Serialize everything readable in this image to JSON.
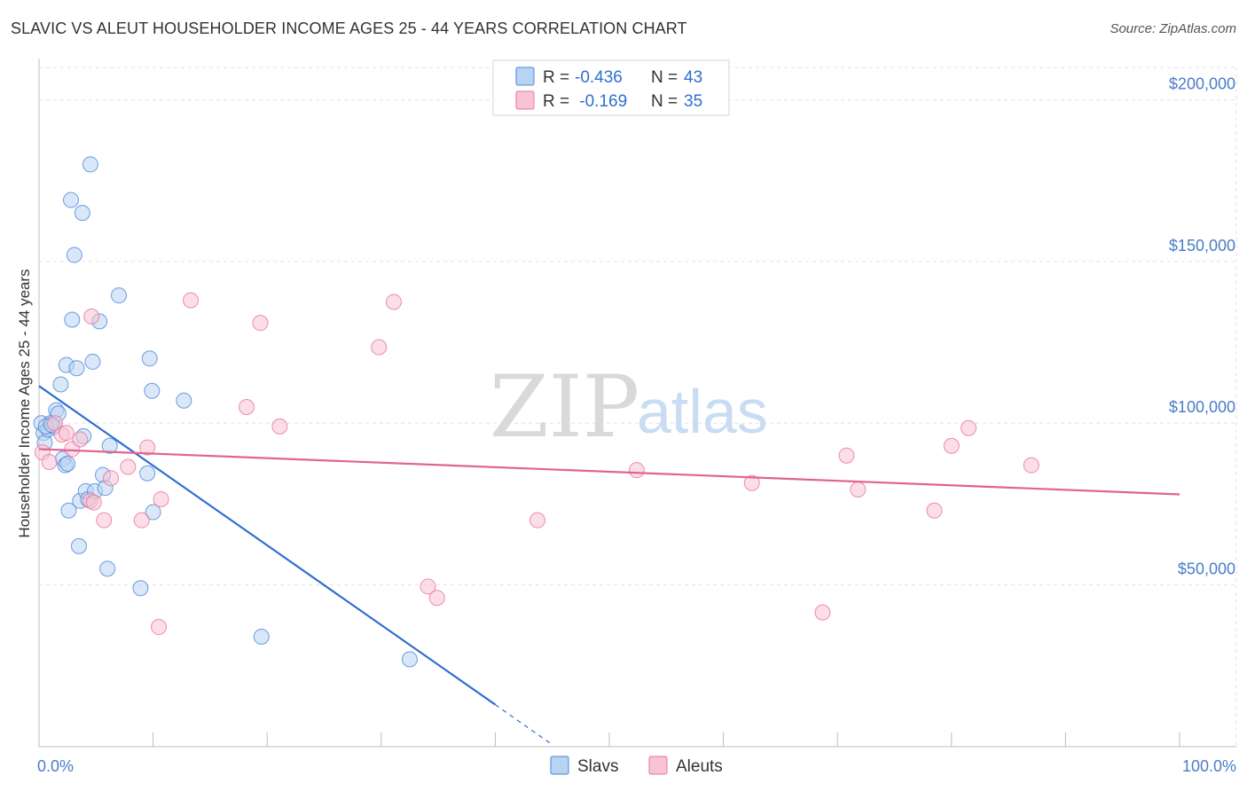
{
  "header": {
    "title": "SLAVIC VS ALEUT HOUSEHOLDER INCOME AGES 25 - 44 YEARS CORRELATION CHART",
    "source": "Source: ZipAtlas.com"
  },
  "watermark": {
    "zip": "ZIP",
    "atlas": "atlas"
  },
  "legend": {
    "rows": [
      {
        "r_label": "R = ",
        "r_value": "-0.436",
        "n_label": "N = ",
        "n_value": "43"
      },
      {
        "r_label": "R = ",
        "r_value": " -0.169",
        "n_label": "N = ",
        "n_value": "35"
      }
    ]
  },
  "colors": {
    "slavs": "#4a86d8",
    "slavs_fill": "#b9d3f3",
    "aleuts": "#e8739a",
    "aleuts_fill": "#f8c3d4",
    "grid": "#e2e2e2",
    "axis_text": "#4a7cc7"
  },
  "chart_data": {
    "type": "scatter",
    "title": "SLAVIC VS ALEUT HOUSEHOLDER INCOME AGES 25 - 44 YEARS CORRELATION CHART",
    "xlabel": "",
    "ylabel": "Householder Income Ages 25 - 44 years",
    "xlim": [
      0,
      100
    ],
    "ylim": [
      0,
      210000
    ],
    "x_tick_labels": [
      "0.0%",
      "100.0%"
    ],
    "y_ticks": [
      {
        "value": 50000,
        "label": "$50,000"
      },
      {
        "value": 100000,
        "label": "$100,000"
      },
      {
        "value": 150000,
        "label": "$150,000"
      },
      {
        "value": 200000,
        "label": "$200,000"
      }
    ],
    "series": [
      {
        "name": "Slavs",
        "r": -0.436,
        "n": 43,
        "trend": {
          "x0": 0,
          "y0": 111500,
          "x1": 40,
          "y1": 13000,
          "dash_x1": 45,
          "dash_y1": 600
        },
        "points": [
          {
            "x": 0.2,
            "y": 100000
          },
          {
            "x": 0.4,
            "y": 97000
          },
          {
            "x": 0.5,
            "y": 94000
          },
          {
            "x": 0.8,
            "y": 98000
          },
          {
            "x": 1.0,
            "y": 100000
          },
          {
            "x": 1.3,
            "y": 99000
          },
          {
            "x": 1.5,
            "y": 104000
          },
          {
            "x": 1.7,
            "y": 103000
          },
          {
            "x": 1.9,
            "y": 112000
          },
          {
            "x": 2.1,
            "y": 89000
          },
          {
            "x": 2.3,
            "y": 87000
          },
          {
            "x": 2.5,
            "y": 87500
          },
          {
            "x": 2.4,
            "y": 118000
          },
          {
            "x": 2.6,
            "y": 73000
          },
          {
            "x": 2.8,
            "y": 169000
          },
          {
            "x": 2.9,
            "y": 132000
          },
          {
            "x": 3.1,
            "y": 152000
          },
          {
            "x": 3.3,
            "y": 117000
          },
          {
            "x": 3.5,
            "y": 62000
          },
          {
            "x": 3.6,
            "y": 76000
          },
          {
            "x": 3.8,
            "y": 165000
          },
          {
            "x": 3.9,
            "y": 96000
          },
          {
            "x": 4.1,
            "y": 79000
          },
          {
            "x": 4.3,
            "y": 76500
          },
          {
            "x": 4.5,
            "y": 180000
          },
          {
            "x": 4.7,
            "y": 119000
          },
          {
            "x": 4.9,
            "y": 79000
          },
          {
            "x": 5.3,
            "y": 131500
          },
          {
            "x": 5.6,
            "y": 84000
          },
          {
            "x": 5.8,
            "y": 80000
          },
          {
            "x": 6.0,
            "y": 55000
          },
          {
            "x": 6.2,
            "y": 93000
          },
          {
            "x": 7.0,
            "y": 139500
          },
          {
            "x": 8.9,
            "y": 49000
          },
          {
            "x": 9.5,
            "y": 84500
          },
          {
            "x": 9.7,
            "y": 120000
          },
          {
            "x": 9.9,
            "y": 110000
          },
          {
            "x": 10.0,
            "y": 72500
          },
          {
            "x": 12.7,
            "y": 107000
          },
          {
            "x": 19.5,
            "y": 34000
          },
          {
            "x": 32.5,
            "y": 27000
          },
          {
            "x": 0.6,
            "y": 99000
          },
          {
            "x": 1.1,
            "y": 99500
          }
        ]
      },
      {
        "name": "Aleuts",
        "r": -0.169,
        "n": 35,
        "trend": {
          "x0": 0,
          "y0": 92000,
          "x1": 100,
          "y1": 78000
        },
        "points": [
          {
            "x": 0.3,
            "y": 91000
          },
          {
            "x": 0.9,
            "y": 88000
          },
          {
            "x": 1.4,
            "y": 100000
          },
          {
            "x": 2.0,
            "y": 96500
          },
          {
            "x": 2.4,
            "y": 97000
          },
          {
            "x": 2.9,
            "y": 92000
          },
          {
            "x": 3.6,
            "y": 95000
          },
          {
            "x": 4.5,
            "y": 76000
          },
          {
            "x": 4.6,
            "y": 133000
          },
          {
            "x": 4.8,
            "y": 75500
          },
          {
            "x": 5.7,
            "y": 70000
          },
          {
            "x": 6.3,
            "y": 83000
          },
          {
            "x": 7.8,
            "y": 86500
          },
          {
            "x": 9.0,
            "y": 70000
          },
          {
            "x": 9.5,
            "y": 92500
          },
          {
            "x": 10.5,
            "y": 37000
          },
          {
            "x": 10.7,
            "y": 76500
          },
          {
            "x": 13.3,
            "y": 138000
          },
          {
            "x": 18.2,
            "y": 105000
          },
          {
            "x": 19.4,
            "y": 131000
          },
          {
            "x": 21.1,
            "y": 99000
          },
          {
            "x": 29.8,
            "y": 123500
          },
          {
            "x": 31.1,
            "y": 137500
          },
          {
            "x": 34.1,
            "y": 49500
          },
          {
            "x": 34.9,
            "y": 46000
          },
          {
            "x": 43.7,
            "y": 70000
          },
          {
            "x": 52.4,
            "y": 85500
          },
          {
            "x": 62.5,
            "y": 81500
          },
          {
            "x": 68.7,
            "y": 41500
          },
          {
            "x": 70.8,
            "y": 90000
          },
          {
            "x": 71.8,
            "y": 79500
          },
          {
            "x": 78.5,
            "y": 73000
          },
          {
            "x": 80.0,
            "y": 93000
          },
          {
            "x": 81.5,
            "y": 98500
          },
          {
            "x": 87.0,
            "y": 87000
          }
        ]
      }
    ]
  }
}
